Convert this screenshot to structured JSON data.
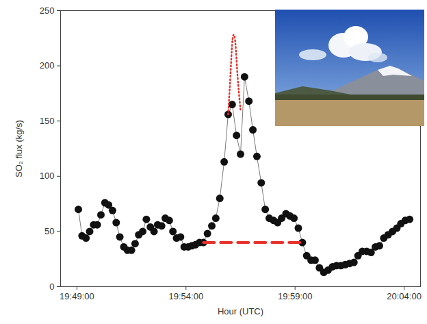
{
  "chart_data": {
    "type": "line",
    "x_label": "Hour (UTC)",
    "y_label": "SO₂ flux (kg/s)",
    "xlim": [
      "19:48:15",
      "20:04:45"
    ],
    "xticks": [
      "19:49:00",
      "19:54:00",
      "19:59:00",
      "20:04:00"
    ],
    "ylim": [
      0,
      250
    ],
    "yticks": [
      0,
      50,
      100,
      150,
      200,
      250
    ],
    "series": [
      {
        "type": "line",
        "marker": "circle",
        "line_style": "solid",
        "color": "#111111",
        "x": [
          "19:49:04",
          "19:49:14",
          "19:49:25",
          "19:49:35",
          "19:49:46",
          "19:49:56",
          "19:50:06",
          "19:50:17",
          "19:50:27",
          "19:50:38",
          "19:50:48",
          "19:50:58",
          "19:51:09",
          "19:51:19",
          "19:51:30",
          "19:51:40",
          "19:51:50",
          "19:52:01",
          "19:52:11",
          "19:52:22",
          "19:52:32",
          "19:52:42",
          "19:52:53",
          "19:53:03",
          "19:53:14",
          "19:53:24",
          "19:53:34",
          "19:53:45",
          "19:53:55",
          "19:54:06",
          "19:54:16",
          "19:54:26",
          "19:54:37",
          "19:54:48",
          "19:54:59",
          "19:55:11",
          "19:55:22",
          "19:55:33",
          "19:55:45",
          "19:55:56",
          "19:56:07",
          "19:56:19",
          "19:56:30",
          "19:56:41",
          "19:56:53",
          "19:57:04",
          "19:57:15",
          "19:57:27",
          "19:57:38",
          "19:57:49",
          "19:58:01",
          "19:58:12",
          "19:58:23",
          "19:58:35",
          "19:58:46",
          "19:58:57",
          "19:59:09",
          "19:59:20",
          "19:59:32",
          "19:59:44",
          "19:59:55",
          "20:00:07",
          "20:00:19",
          "20:00:31",
          "20:00:43",
          "20:00:54",
          "20:01:06",
          "20:01:18",
          "20:01:30",
          "20:01:42",
          "20:01:53",
          "20:02:05",
          "20:02:17",
          "20:02:29",
          "20:02:41",
          "20:02:52",
          "20:03:04",
          "20:03:16",
          "20:03:28",
          "20:03:40",
          "20:03:51",
          "20:04:03",
          "20:04:15"
        ],
        "values": [
          70,
          46,
          44,
          50,
          56,
          56,
          65,
          76,
          74,
          69,
          58,
          45,
          36,
          33,
          33,
          39,
          47,
          50,
          61,
          54,
          50,
          56,
          55,
          62,
          60,
          50,
          44,
          45,
          36,
          36,
          37,
          38,
          40,
          40,
          48,
          55,
          62,
          80,
          113,
          156,
          165,
          137,
          120,
          190,
          168,
          142,
          118,
          94,
          70,
          62,
          60,
          58,
          62,
          66,
          64,
          62,
          53,
          40,
          28,
          24,
          24,
          17,
          13,
          15,
          18,
          19,
          19,
          20,
          21,
          22,
          28,
          32,
          32,
          31,
          36,
          37,
          44,
          47,
          50,
          53,
          57,
          60,
          61
        ]
      },
      {
        "type": "line",
        "marker": "none",
        "line_style": "dotted",
        "color": "#e8312a",
        "x": [
          "19:55:56",
          "19:56:02",
          "19:56:07",
          "19:56:11",
          "19:56:16",
          "19:56:22",
          "19:56:30"
        ],
        "values": [
          156,
          190,
          220,
          228,
          220,
          190,
          160
        ]
      },
      {
        "type": "line",
        "marker": "none",
        "line_style": "dashed",
        "color": "#e8312a",
        "x": [
          "19:54:48",
          "19:59:20"
        ],
        "values": [
          40,
          40
        ]
      }
    ]
  }
}
